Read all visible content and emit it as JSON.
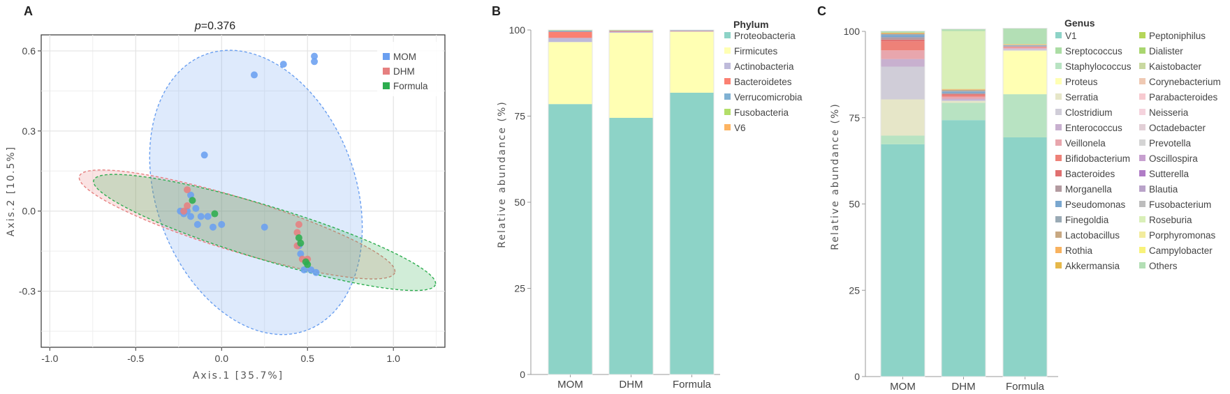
{
  "chart_data": [
    {
      "type": "scatter",
      "panel": "A",
      "title": "p = 0.376",
      "title_prefix": "p",
      "title_value": "=0.376",
      "xlabel": "Axis.1 [35.7%]",
      "ylabel": "Axis.2 [10.5%]",
      "xlim": [
        -1.05,
        1.3
      ],
      "ylim": [
        -0.51,
        0.66
      ],
      "xticks": [
        -1.0,
        -0.5,
        0.0,
        0.5,
        1.0
      ],
      "xtick_labels": [
        "-1.0",
        "-0.5",
        "0.0",
        "0.5",
        "1.0"
      ],
      "yticks": [
        -0.3,
        0.0,
        0.3,
        0.6
      ],
      "ytick_labels": [
        "-0.3",
        "0.0",
        "0.3",
        "0.6"
      ],
      "grid": true,
      "legend_position": "top-right",
      "series": [
        {
          "name": "MOM",
          "color": "#6a9ff0",
          "ellipse": {
            "cx": 0.2,
            "cy": 0.07,
            "rx": 0.58,
            "ry": 0.55,
            "angle": -20
          },
          "points": [
            [
              0.54,
              0.58
            ],
            [
              0.54,
              0.56
            ],
            [
              0.36,
              0.55
            ],
            [
              0.19,
              0.51
            ],
            [
              -0.1,
              0.21
            ],
            [
              -0.18,
              0.06
            ],
            [
              -0.24,
              0.0
            ],
            [
              -0.22,
              -0.01
            ],
            [
              -0.2,
              0.0
            ],
            [
              -0.15,
              0.01
            ],
            [
              -0.12,
              -0.02
            ],
            [
              -0.08,
              -0.02
            ],
            [
              -0.05,
              -0.06
            ],
            [
              0.0,
              -0.05
            ],
            [
              -0.14,
              -0.05
            ],
            [
              -0.18,
              -0.02
            ],
            [
              0.25,
              -0.06
            ],
            [
              0.45,
              -0.13
            ],
            [
              0.46,
              -0.16
            ],
            [
              0.48,
              -0.22
            ],
            [
              0.52,
              -0.22
            ],
            [
              0.55,
              -0.23
            ]
          ]
        },
        {
          "name": "DHM",
          "color": "#e68080",
          "ellipse": {
            "cx": 0.09,
            "cy": -0.05,
            "rx": 0.96,
            "ry": 0.1,
            "angle": 17
          },
          "points": [
            [
              -0.2,
              0.02
            ],
            [
              -0.22,
              0.0
            ],
            [
              -0.2,
              0.08
            ],
            [
              0.45,
              -0.05
            ],
            [
              0.44,
              -0.08
            ],
            [
              0.5,
              -0.18
            ],
            [
              0.47,
              -0.18
            ],
            [
              0.44,
              -0.13
            ]
          ]
        },
        {
          "name": "Formula",
          "color": "#2dad4f",
          "ellipse": {
            "cx": 0.25,
            "cy": -0.08,
            "rx": 1.04,
            "ry": 0.1,
            "angle": 17
          },
          "points": [
            [
              -0.17,
              0.04
            ],
            [
              -0.04,
              -0.01
            ],
            [
              0.45,
              -0.1
            ],
            [
              0.46,
              -0.12
            ],
            [
              0.49,
              -0.19
            ],
            [
              0.5,
              -0.2
            ]
          ]
        }
      ]
    },
    {
      "type": "bar",
      "stacked": true,
      "panel": "B",
      "xlabel": "",
      "ylabel": "Relative abundance (%)",
      "ylim": [
        0,
        100
      ],
      "yticks": [
        0,
        25,
        50,
        75,
        100
      ],
      "legend_title": "Phylum",
      "legend_position": "right",
      "categories": [
        "MOM",
        "DHM",
        "Formula"
      ],
      "series": [
        {
          "name": "Proteobacteria",
          "color": "#8dd3c7",
          "values": [
            78.5,
            74.5,
            81.8
          ]
        },
        {
          "name": "Firmicutes",
          "color": "#ffffb3",
          "values": [
            18.0,
            24.7,
            17.7
          ]
        },
        {
          "name": "Actinobacteria",
          "color": "#bebada",
          "values": [
            1.2,
            0.3,
            0.2
          ]
        },
        {
          "name": "Bacteroidetes",
          "color": "#fb8072",
          "values": [
            1.8,
            0.2,
            0.1
          ]
        },
        {
          "name": "Verrucomicrobia",
          "color": "#80b1d3",
          "values": [
            0.3,
            0.1,
            0.1
          ]
        },
        {
          "name": "Fusobacteria",
          "color": "#b3de69",
          "values": [
            0.1,
            0.1,
            0.05
          ]
        },
        {
          "name": "V6",
          "color": "#fdb462",
          "values": [
            0.1,
            0.1,
            0.05
          ]
        }
      ]
    },
    {
      "type": "bar",
      "stacked": true,
      "panel": "C",
      "xlabel": "",
      "ylabel": "Relative abundance (%)",
      "ylim": [
        0,
        100
      ],
      "yticks": [
        0,
        25,
        50,
        75,
        100
      ],
      "legend_title": "Genus",
      "legend_position": "right",
      "categories": [
        "MOM",
        "DHM",
        "Formula"
      ],
      "series": [
        {
          "name": "V1",
          "color": "#8dd3c7",
          "values": [
            67.3,
            74.3,
            69.3
          ]
        },
        {
          "name": "Sreptococcus",
          "color": "#abdda4",
          "values": [
            0.0,
            0.0,
            0.0
          ]
        },
        {
          "name": "Staphylococcus",
          "color": "#b8e3c2",
          "values": [
            2.5,
            5.0,
            12.5
          ]
        },
        {
          "name": "Proteus",
          "color": "#ffffb3",
          "values": [
            0.0,
            0.0,
            12.5
          ]
        },
        {
          "name": "Serratia",
          "color": "#e6e6c8",
          "values": [
            10.5,
            0.5,
            0.2
          ]
        },
        {
          "name": "Clostridium",
          "color": "#d0cdd8",
          "values": [
            9.5,
            0.3,
            0.3
          ]
        },
        {
          "name": "Enterococcus",
          "color": "#c8b0cf",
          "values": [
            2.2,
            0.4,
            0.2
          ]
        },
        {
          "name": "Veillonela",
          "color": "#e8a6ad",
          "values": [
            2.5,
            0.6,
            0.3
          ]
        },
        {
          "name": "Bifidobacterium",
          "color": "#ee8178",
          "values": [
            2.6,
            0.4,
            0.2
          ]
        },
        {
          "name": "Bacteroides",
          "color": "#e07070",
          "values": [
            0.5,
            0.3,
            0.1
          ]
        },
        {
          "name": "Morganella",
          "color": "#b39aa0",
          "values": [
            0.7,
            0.3,
            0.1
          ]
        },
        {
          "name": "Pseudomonas",
          "color": "#7aa7cf",
          "values": [
            0.6,
            0.4,
            0.2
          ]
        },
        {
          "name": "Finegoldia",
          "color": "#9aaab5",
          "values": [
            0.3,
            0.3,
            0.1
          ]
        },
        {
          "name": "Lactobacillus",
          "color": "#c8a882",
          "values": [
            0.2,
            0.3,
            0.1
          ]
        },
        {
          "name": "Rothia",
          "color": "#f8b25f",
          "values": [
            0.1,
            0.1,
            0.1
          ]
        },
        {
          "name": "Akkermansia",
          "color": "#e6b84a",
          "values": [
            0.1,
            0.1,
            0.1
          ]
        },
        {
          "name": "Peptoniphilus",
          "color": "#b5d65a",
          "values": [
            0.0,
            0.0,
            0.0
          ]
        },
        {
          "name": "Dialister",
          "color": "#a9d66f",
          "values": [
            0.0,
            0.0,
            0.0
          ]
        },
        {
          "name": "Kaistobacter",
          "color": "#c9d8a0",
          "values": [
            0.0,
            0.0,
            0.0
          ]
        },
        {
          "name": "Corynebacterium",
          "color": "#efc9b3",
          "values": [
            0.0,
            0.0,
            0.0
          ]
        },
        {
          "name": "Parabacteroides",
          "color": "#f7cad0",
          "values": [
            0.0,
            0.0,
            0.0
          ]
        },
        {
          "name": "Neisseria",
          "color": "#f5d3dd",
          "values": [
            0.0,
            0.0,
            0.0
          ]
        },
        {
          "name": "Octadebacter",
          "color": "#e2cfd6",
          "values": [
            0.0,
            0.0,
            0.0
          ]
        },
        {
          "name": "Prevotella",
          "color": "#d4d4d4",
          "values": [
            0.0,
            0.0,
            0.0
          ]
        },
        {
          "name": "Oscillospira",
          "color": "#c7a0cf",
          "values": [
            0.0,
            0.0,
            0.0
          ]
        },
        {
          "name": "Sutterella",
          "color": "#b07cc6",
          "values": [
            0.0,
            0.0,
            0.0
          ]
        },
        {
          "name": "Blautia",
          "color": "#b9a3c9",
          "values": [
            0.0,
            0.0,
            0.0
          ]
        },
        {
          "name": "Fusobacterium",
          "color": "#bdbdbd",
          "values": [
            0.0,
            0.0,
            0.0
          ]
        },
        {
          "name": "Roseburia",
          "color": "#d9efb8",
          "values": [
            0.0,
            16.8,
            0.0
          ]
        },
        {
          "name": "Porphyromonas",
          "color": "#f2ec9d",
          "values": [
            0.0,
            0.0,
            0.0
          ]
        },
        {
          "name": "Campylobacter",
          "color": "#f8f27a",
          "values": [
            0.0,
            0.0,
            0.0
          ]
        },
        {
          "name": "Others",
          "color": "#b3dfb5",
          "values": [
            0.5,
            0.6,
            4.6
          ]
        }
      ]
    }
  ]
}
